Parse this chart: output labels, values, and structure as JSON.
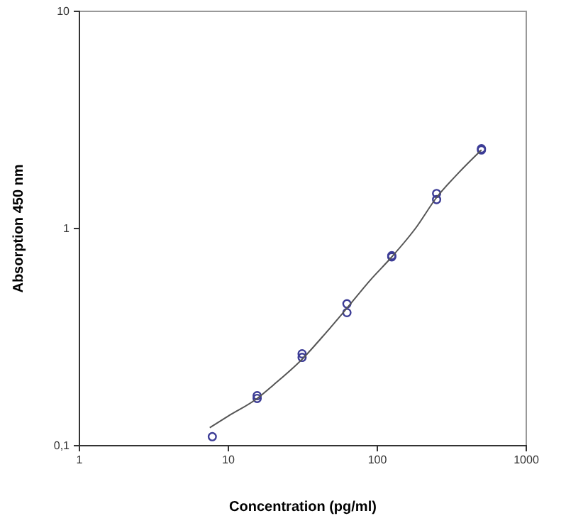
{
  "chart_data": {
    "type": "scatter",
    "xlabel": "Concentration (pg/ml)",
    "ylabel": "Absorption 450 nm",
    "log": "xy",
    "xlim": [
      1,
      1000
    ],
    "ylim": [
      0.1,
      10
    ],
    "xticks": [
      1,
      10,
      100,
      1000
    ],
    "yticks": [
      {
        "value": 0.1,
        "label": "0,1"
      },
      1,
      10
    ],
    "grid": false,
    "series": [
      {
        "color": "#3c3c96",
        "marker": "circle",
        "x": [
          7.8,
          15.6,
          15.6,
          31.25,
          31.25,
          62.5,
          62.5,
          125,
          125,
          250,
          250,
          500,
          500
        ],
        "values": [
          0.11,
          0.165,
          0.17,
          0.255,
          0.265,
          0.45,
          0.41,
          0.75,
          0.74,
          1.45,
          1.36,
          2.33,
          2.3
        ]
      },
      {
        "type": "line",
        "color": "#555555",
        "marker": "none",
        "line_style": "solid",
        "x": [
          7.5,
          10,
          15.6,
          20,
          31.25,
          45,
          62.5,
          90,
          125,
          180,
          250,
          350,
          500
        ],
        "values": [
          0.121,
          0.137,
          0.165,
          0.19,
          0.25,
          0.33,
          0.43,
          0.58,
          0.74,
          1.0,
          1.39,
          1.8,
          2.3
        ]
      }
    ]
  }
}
